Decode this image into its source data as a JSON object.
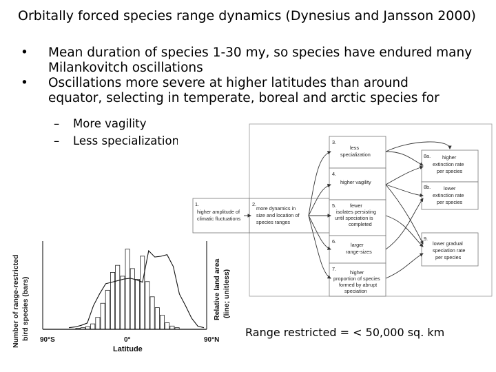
{
  "title": "Orbitally forced species range dynamics (Dynesius and Jansson 2000)",
  "bullets": [
    {
      "marker": "•",
      "lines": [
        "Mean duration of species 1-30 my, so species have endured many",
        "Milankovitch oscillations"
      ]
    },
    {
      "marker": "•",
      "lines": [
        "Oscillations more severe at higher latitudes than around",
        "equator, selecting in temperate, boreal and arctic species for"
      ]
    }
  ],
  "subbullets": [
    {
      "marker": "–",
      "text": "More vagility"
    },
    {
      "marker": "–",
      "text": "Less specialization"
    }
  ],
  "flow_diagram": {
    "nodes": [
      {
        "num": "1.",
        "lines": [
          "higher amplitude of",
          "climatic fluctuations"
        ]
      },
      {
        "num": "2.",
        "lines": [
          "more dynamics in",
          "size and location of",
          "species ranges"
        ]
      },
      {
        "num": "3.",
        "lines": [
          "less",
          "specialization"
        ]
      },
      {
        "num": "4.",
        "lines": [
          "higher vagility"
        ]
      },
      {
        "num": "5.",
        "lines": [
          "fewer",
          "isolates persisting",
          "until speciation is",
          "completed"
        ]
      },
      {
        "num": "6.",
        "lines": [
          "larger",
          "range-sizes"
        ]
      },
      {
        "num": "7.",
        "lines": [
          "higher",
          "proportion of species",
          "formed by abrupt",
          "speciation"
        ]
      },
      {
        "num": "8a.",
        "lines": [
          "higher",
          "extinction rate",
          "per species"
        ]
      },
      {
        "num": "8b.",
        "lines": [
          "lower",
          "extinction rate",
          "per species"
        ]
      },
      {
        "num": "9.",
        "lines": [
          "lower gradual",
          "speciation rate",
          "per species"
        ]
      }
    ]
  },
  "histogram": {
    "y_left_label": [
      "Number of range-restricted",
      "bird species (bars)"
    ],
    "y_right_label": [
      "Relative land area",
      "(line; unitless)"
    ],
    "x_label": "Latitude",
    "x_ticks": [
      "90°S",
      "0°",
      "90°N"
    ],
    "bar_values": [
      2,
      3,
      5,
      10,
      22,
      48,
      72,
      105,
      118,
      98,
      148,
      112,
      92,
      135,
      88,
      60,
      40,
      26,
      12,
      6,
      3
    ],
    "land_area_line": [
      2,
      3,
      5,
      8,
      30,
      45,
      58,
      60,
      62,
      64,
      65,
      63,
      60,
      100,
      92,
      93,
      95,
      80,
      45,
      30,
      14,
      4,
      2
    ]
  },
  "note": "Range restricted = < 50,000 sq. km"
}
